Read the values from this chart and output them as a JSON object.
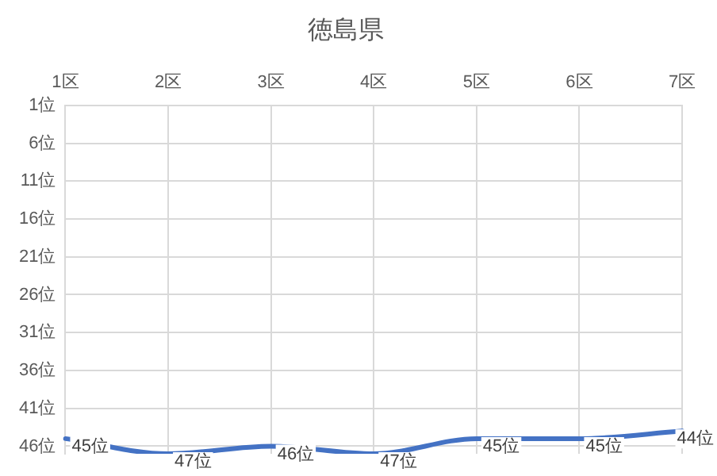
{
  "chart_data": {
    "type": "line",
    "title": "徳島県",
    "categories": [
      "1区",
      "2区",
      "3区",
      "4区",
      "5区",
      "6区",
      "7区"
    ],
    "series": [
      {
        "color": "#4472c4",
        "values": [
          45,
          47,
          46,
          47,
          45,
          45,
          44
        ],
        "value_labels": [
          "45位",
          "47位",
          "46位",
          "47位",
          "45位",
          "45位",
          "44位"
        ]
      }
    ],
    "ylim": [
      47,
      1
    ],
    "yticks": [
      {
        "value": 1,
        "label": "1位"
      },
      {
        "value": 6,
        "label": "6位"
      },
      {
        "value": 11,
        "label": "11位"
      },
      {
        "value": 16,
        "label": "16位"
      },
      {
        "value": 21,
        "label": "21位"
      },
      {
        "value": 26,
        "label": "26位"
      },
      {
        "value": 31,
        "label": "31位"
      },
      {
        "value": 36,
        "label": "36位"
      },
      {
        "value": 41,
        "label": "41位"
      },
      {
        "value": 46,
        "label": "46位"
      }
    ],
    "grid": true,
    "legend": false,
    "marker": "none",
    "line_style": "solid"
  }
}
